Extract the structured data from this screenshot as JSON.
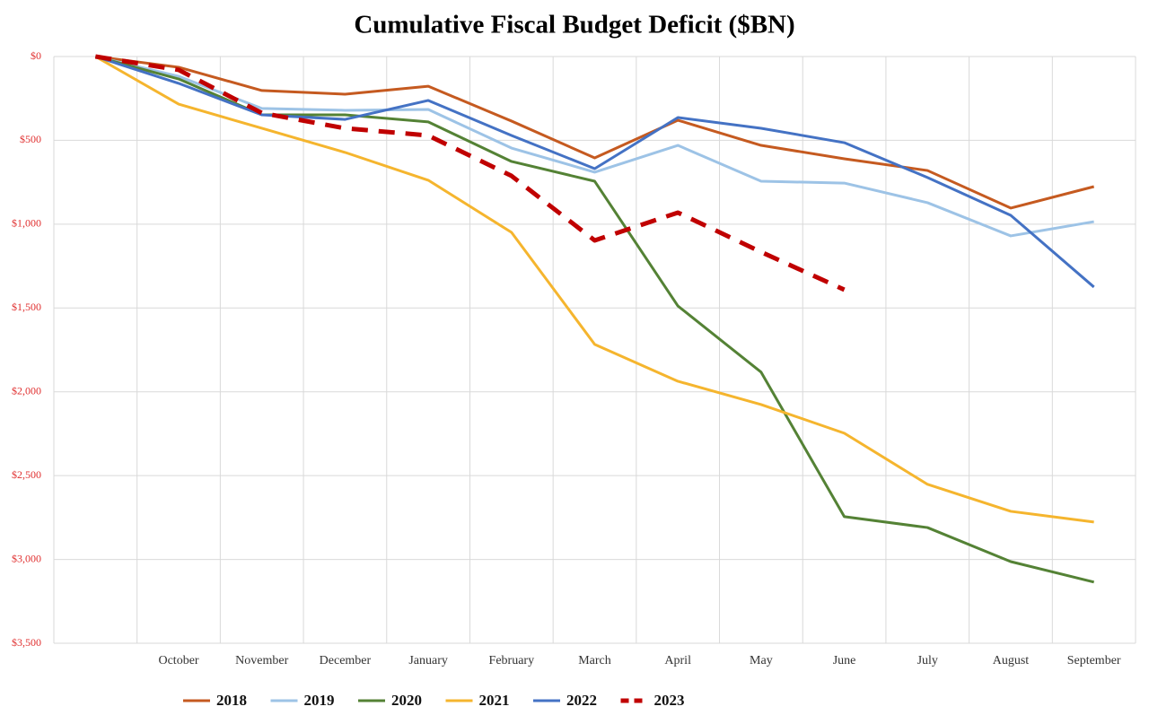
{
  "chart_data": {
    "type": "line",
    "title": "Cumulative Fiscal Budget Deficit ($BN)",
    "categories": [
      null,
      "October",
      "November",
      "December",
      "January",
      "February",
      "March",
      "April",
      "May",
      "June",
      "July",
      "August",
      "September"
    ],
    "ylim": [
      0,
      3500
    ],
    "inverted_y": true,
    "grid": true,
    "legend": "bottom",
    "yticks": [
      {
        "value": 0,
        "label": "$0"
      },
      {
        "value": 500,
        "label": "$500"
      },
      {
        "value": 1000,
        "label": "$1,000"
      },
      {
        "value": 1500,
        "label": "$1,500"
      },
      {
        "value": 2000,
        "label": "$2,000"
      },
      {
        "value": 2500,
        "label": "$2,500"
      },
      {
        "value": 3000,
        "label": "$3,000"
      },
      {
        "value": 3500,
        "label": "$3,500"
      }
    ],
    "series": [
      {
        "name": "2018",
        "color": "#c55a20",
        "values": [
          0,
          64,
          203,
          225,
          177,
          385,
          605,
          380,
          530,
          610,
          680,
          904,
          776
        ]
      },
      {
        "name": "2019",
        "color": "#9dc3e6",
        "values": [
          0,
          118,
          310,
          321,
          316,
          546,
          690,
          530,
          744,
          755,
          872,
          1070,
          985
        ]
      },
      {
        "name": "2020",
        "color": "#548235",
        "values": [
          0,
          134,
          348,
          348,
          390,
          626,
          744,
          1488,
          1883,
          2745,
          2810,
          3013,
          3135
        ]
      },
      {
        "name": "2021",
        "color": "#f5b52e",
        "values": [
          0,
          284,
          428,
          572,
          738,
          1049,
          1717,
          1937,
          2076,
          2247,
          2552,
          2713,
          2777
        ]
      },
      {
        "name": "2022",
        "color": "#4472c4",
        "values": [
          0,
          160,
          348,
          375,
          262,
          471,
          669,
          364,
          428,
          514,
          722,
          947,
          1375
        ]
      },
      {
        "name": "2023",
        "color": "#c00000",
        "dashed": true,
        "values": [
          0,
          80,
          337,
          428,
          471,
          712,
          1097,
          931,
          1166,
          1391,
          null,
          null,
          null
        ]
      }
    ]
  }
}
